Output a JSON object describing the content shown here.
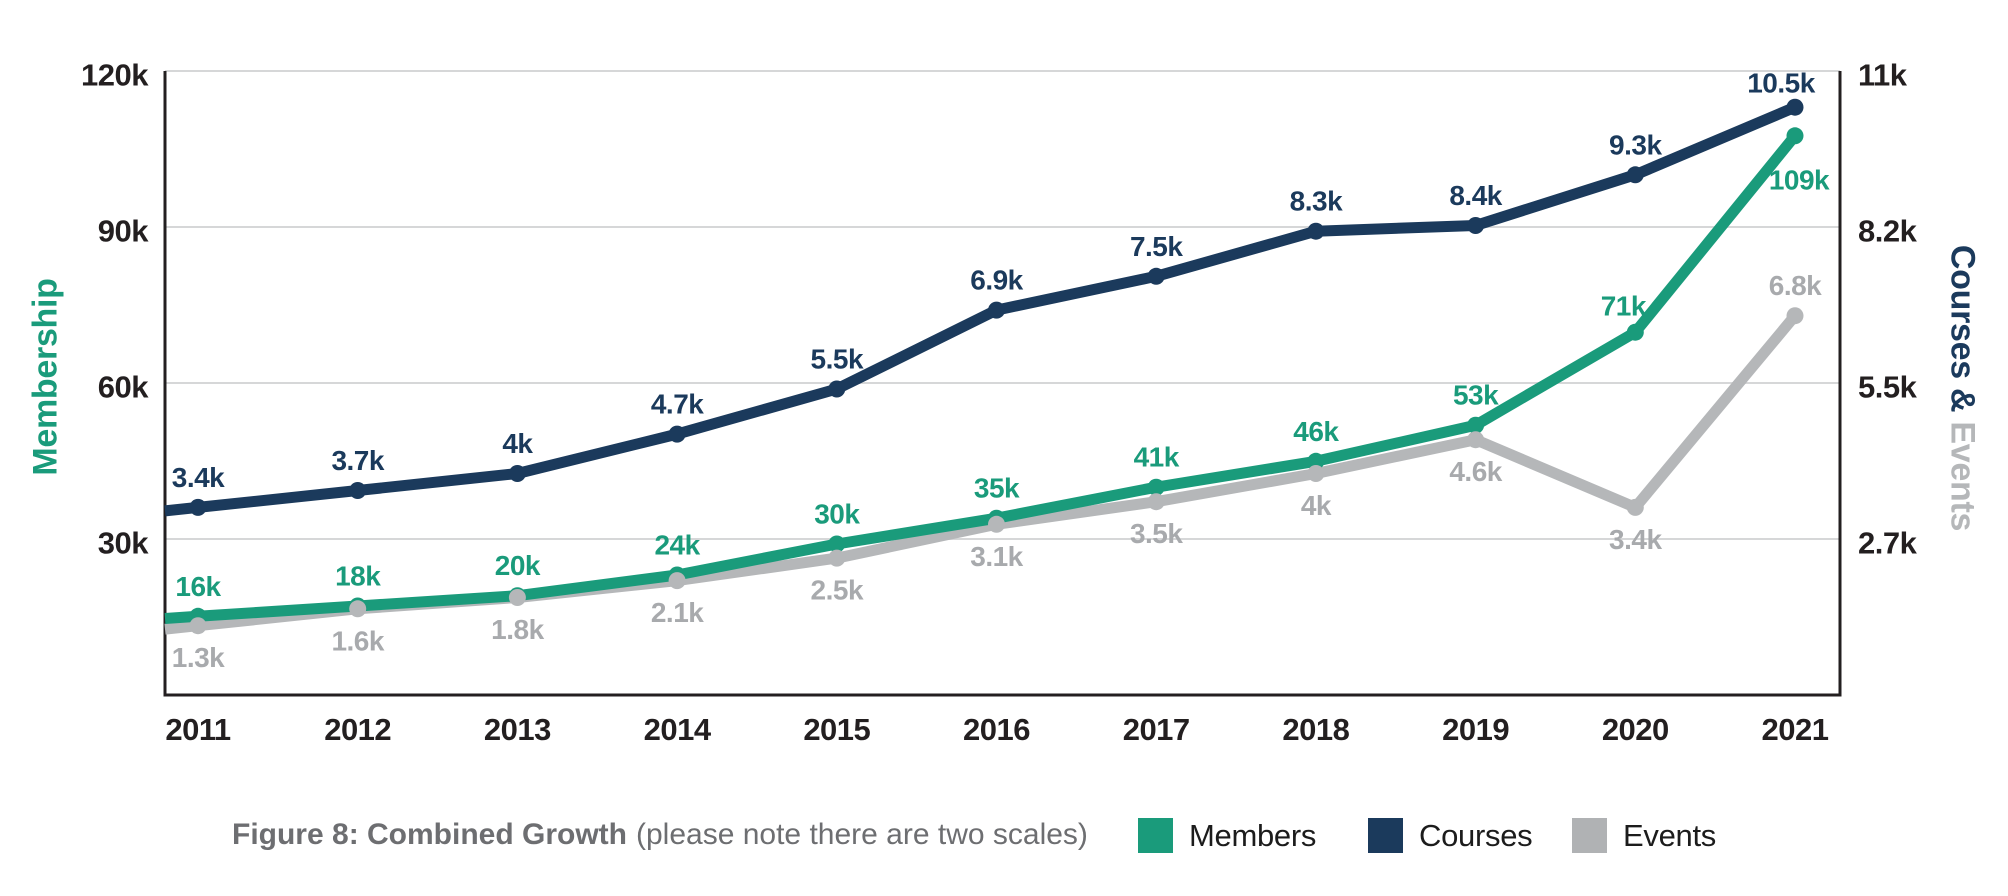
{
  "figure": {
    "caption": {
      "title": "Figure 8: Combined Growth",
      "note": "(please note there are two scales)"
    }
  },
  "chart_data": {
    "type": "line",
    "title": "Figure 8: Combined Growth",
    "subtitle": "please note there are two scales",
    "grid": true,
    "legend_position": "bottom",
    "categories": [
      "2011",
      "2012",
      "2013",
      "2014",
      "2015",
      "2016",
      "2017",
      "2018",
      "2019",
      "2020",
      "2021"
    ],
    "left_axis": {
      "title": "Membership",
      "range": [
        0,
        120000
      ],
      "ticks": [
        "120k",
        "90k",
        "60k",
        "30k"
      ],
      "tick_values": [
        120000,
        90000,
        60000,
        30000
      ]
    },
    "right_axis": {
      "title_part1": "Courses & ",
      "title_part2": "Events",
      "range": [
        0,
        11000
      ],
      "ticks": [
        "11k",
        "8.2k",
        "5.5k",
        "2.7k"
      ],
      "tick_values": [
        11000,
        8250,
        5500,
        2750
      ]
    },
    "series": [
      {
        "name": "Members",
        "axis": "left",
        "color": "#1a9b7b",
        "values": [
          16000,
          18000,
          20000,
          24000,
          30000,
          35000,
          41000,
          46000,
          53000,
          71000,
          109000
        ],
        "labels": [
          "16k",
          "18k",
          "20k",
          "24k",
          "30k",
          "35k",
          "41k",
          "46k",
          "53k",
          "71k",
          "109k"
        ],
        "label_side": "above",
        "label_overrides": {
          "9": {
            "dx": -12,
            "dy": -26
          },
          "10": {
            "dx": 4,
            "dy": 44
          }
        }
      },
      {
        "name": "Courses",
        "axis": "right",
        "color": "#1b3a5c",
        "values": [
          3400,
          3700,
          4000,
          4700,
          5500,
          6900,
          7500,
          8300,
          8400,
          9300,
          10500
        ],
        "labels": [
          "3.4k",
          "3.7k",
          "4k",
          "4.7k",
          "5.5k",
          "6.9k",
          "7.5k",
          "8.3k",
          "8.4k",
          "9.3k",
          "10.5k"
        ],
        "label_side": "above",
        "label_overrides": {
          "10": {
            "dx": -14,
            "dy": -24
          }
        }
      },
      {
        "name": "Events",
        "axis": "right",
        "color": "#b5b7b9",
        "label_color": "#a8aaad",
        "values": [
          1300,
          1600,
          1800,
          2100,
          2500,
          3100,
          3500,
          4000,
          4600,
          3400,
          6800
        ],
        "labels": [
          "1.3k",
          "1.6k",
          "1.8k",
          "2.1k",
          "2.5k",
          "3.1k",
          "3.5k",
          "4k",
          "4.6k",
          "3.4k",
          "6.8k"
        ],
        "label_side": "below",
        "label_overrides": {
          "10": {
            "dy": -30
          }
        }
      }
    ]
  },
  "legend": {
    "items": [
      {
        "label": "Members",
        "color": "#1a9b7b"
      },
      {
        "label": "Courses",
        "color": "#1b3a5c"
      },
      {
        "label": "Events",
        "color": "#b0b2b4"
      }
    ]
  },
  "colors": {
    "grid": "#d6d7d8",
    "axis": "#231f20",
    "tick_text": "#231f20",
    "year_text": "#231f20",
    "caption": "#6d6e71"
  }
}
